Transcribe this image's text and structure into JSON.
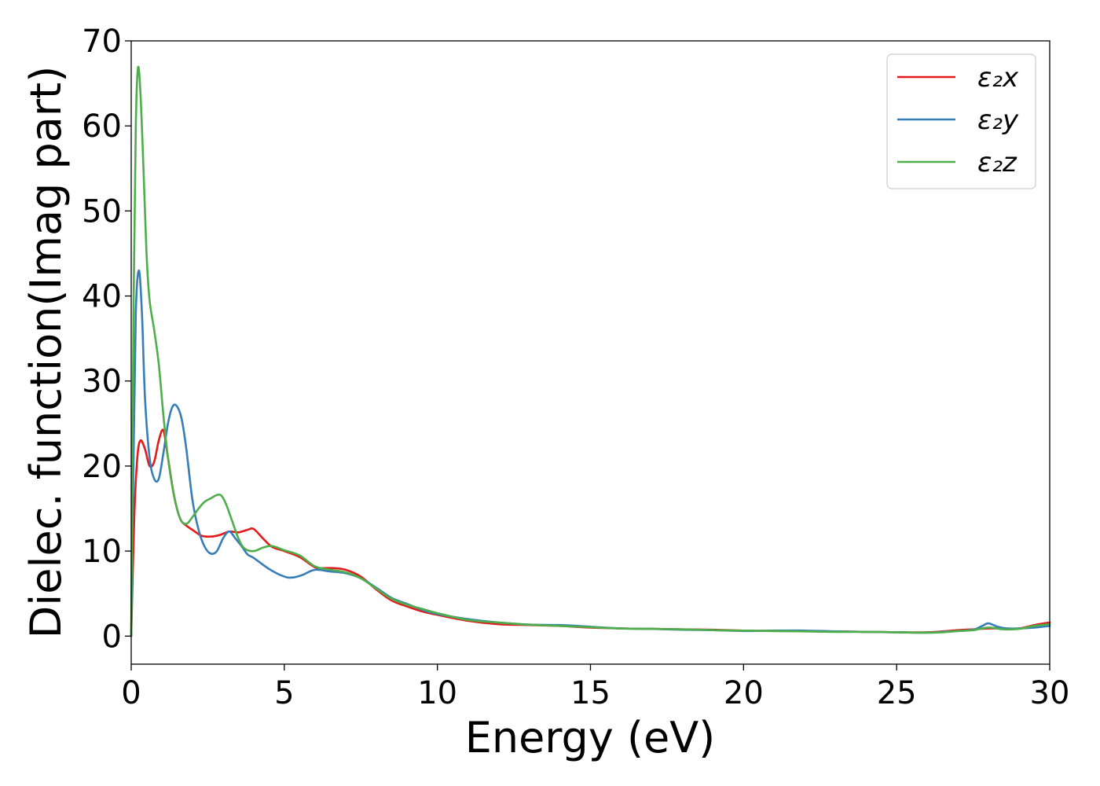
{
  "chart_data": {
    "type": "line",
    "title": "",
    "xlabel": "Energy (eV)",
    "ylabel": "Dielec. function(Imag part)",
    "xlim": [
      0,
      30
    ],
    "ylim": [
      -3.3,
      70
    ],
    "xticks": [
      0,
      5,
      10,
      15,
      20,
      25,
      30
    ],
    "yticks": [
      0,
      10,
      20,
      30,
      40,
      50,
      60,
      70
    ],
    "grid": false,
    "legend_position": "top-right",
    "series": [
      {
        "name": "ε₂x",
        "color": "#e41a1c",
        "x": [
          0,
          0.1,
          0.2,
          0.3,
          0.45,
          0.6,
          0.75,
          0.9,
          1.05,
          1.2,
          1.4,
          1.6,
          1.8,
          2.0,
          2.3,
          2.6,
          2.9,
          3.2,
          3.5,
          3.8,
          4.0,
          4.3,
          4.6,
          5.0,
          5.5,
          6.0,
          6.3,
          6.6,
          7.0,
          7.5,
          8.0,
          8.5,
          9.0,
          9.5,
          10.0,
          11,
          12,
          13,
          14,
          15,
          16,
          17,
          18,
          19,
          20,
          21,
          22,
          23,
          24,
          25,
          26,
          26.5,
          27,
          27.5,
          28,
          28.5,
          29,
          29.5,
          30
        ],
        "y": [
          0,
          14,
          21,
          23,
          22,
          20,
          20.5,
          23,
          24.2,
          21,
          16.5,
          13.8,
          13,
          12.5,
          11.8,
          11.7,
          11.9,
          12.3,
          12.2,
          12.5,
          12.6,
          11.5,
          10.5,
          10,
          9.3,
          8.1,
          8.0,
          8.0,
          7.8,
          7.0,
          5.5,
          4.2,
          3.5,
          2.9,
          2.5,
          1.8,
          1.4,
          1.3,
          1.2,
          1.0,
          0.9,
          0.85,
          0.8,
          0.75,
          0.65,
          0.6,
          0.6,
          0.55,
          0.5,
          0.45,
          0.45,
          0.55,
          0.7,
          0.8,
          0.9,
          0.9,
          0.9,
          1.3,
          1.6
        ]
      },
      {
        "name": "ε₂y",
        "color": "#377eb8",
        "x": [
          0,
          0.08,
          0.15,
          0.25,
          0.35,
          0.45,
          0.6,
          0.75,
          0.9,
          1.05,
          1.2,
          1.35,
          1.5,
          1.65,
          1.8,
          2.0,
          2.2,
          2.4,
          2.6,
          2.8,
          3.0,
          3.2,
          3.4,
          3.6,
          3.8,
          4.0,
          4.5,
          5.0,
          5.3,
          5.6,
          6.0,
          6.5,
          7.0,
          7.5,
          8.0,
          8.5,
          9.0,
          9.5,
          10.0,
          11,
          12,
          13,
          14,
          15,
          16,
          17,
          18,
          19,
          20,
          21,
          22,
          23,
          24,
          25,
          26,
          26.5,
          27,
          27.5,
          27.8,
          28.0,
          28.3,
          28.6,
          29,
          29.5,
          30
        ],
        "y": [
          0,
          22,
          38,
          43,
          38,
          28,
          21,
          18.5,
          18.5,
          21.5,
          25,
          27,
          27,
          25.5,
          22,
          16,
          12.5,
          10.5,
          9.7,
          10,
          11.5,
          12.3,
          11.5,
          10.6,
          9.6,
          9.2,
          7.9,
          7.0,
          6.9,
          7.2,
          7.8,
          7.6,
          7.4,
          6.8,
          5.7,
          4.5,
          3.8,
          3.1,
          2.6,
          2.0,
          1.6,
          1.35,
          1.3,
          1.1,
          0.9,
          0.85,
          0.75,
          0.7,
          0.6,
          0.65,
          0.65,
          0.55,
          0.5,
          0.45,
          0.4,
          0.5,
          0.6,
          0.75,
          1.2,
          1.5,
          1.1,
          0.9,
          0.9,
          1.0,
          1.2
        ]
      },
      {
        "name": "ε₂z",
        "color": "#4daf4a",
        "x": [
          0,
          0.08,
          0.15,
          0.22,
          0.3,
          0.4,
          0.5,
          0.6,
          0.75,
          0.9,
          1.05,
          1.2,
          1.4,
          1.6,
          1.8,
          2.0,
          2.2,
          2.4,
          2.6,
          2.8,
          2.95,
          3.1,
          3.3,
          3.5,
          3.7,
          4.0,
          4.3,
          4.6,
          5.0,
          5.5,
          6.0,
          6.5,
          7.0,
          7.5,
          8.0,
          8.5,
          9.0,
          9.5,
          10.0,
          11,
          12,
          13,
          14,
          15,
          16,
          17,
          18,
          19,
          20,
          21,
          22,
          23,
          24,
          25,
          26,
          26.5,
          27,
          27.5,
          28.0,
          28.5,
          29,
          29.5,
          30
        ],
        "y": [
          0,
          40,
          60,
          66.8,
          64,
          55,
          45,
          39.5,
          36,
          32,
          26,
          21,
          16.5,
          13.8,
          13.2,
          14,
          15,
          15.8,
          16.2,
          16.6,
          16.5,
          15.5,
          13.5,
          11.5,
          10.3,
          10.0,
          10.4,
          10.6,
          10.1,
          9.5,
          8.2,
          7.8,
          7.5,
          6.8,
          5.6,
          4.4,
          3.7,
          3.2,
          2.7,
          1.9,
          1.6,
          1.35,
          1.2,
          1.05,
          0.9,
          0.85,
          0.8,
          0.7,
          0.65,
          0.6,
          0.55,
          0.5,
          0.5,
          0.45,
          0.4,
          0.45,
          0.6,
          0.7,
          1.0,
          0.8,
          0.85,
          1.2,
          1.4
        ]
      }
    ]
  }
}
